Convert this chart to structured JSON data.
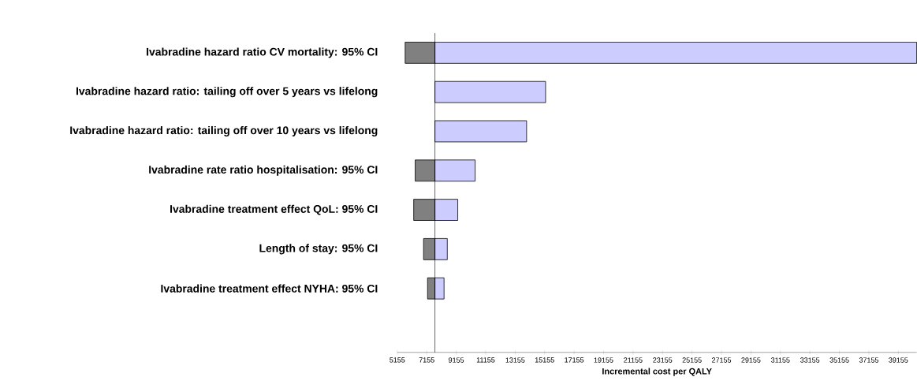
{
  "chart_data": {
    "type": "bar",
    "orientation": "horizontal",
    "xlabel": "Incremental cost per QALY",
    "categories": [
      "Ivabradine hazard ratio CV mortality: 95% CI",
      "Ivabradine hazard ratio: tailing off over 5 years vs lifelong",
      "Ivabradine hazard ratio: tailing off over 10 years vs lifelong",
      "Ivabradine rate ratio hospitalisation:  95% CI",
      "Ivabradine treatment effect QoL: 95% CI",
      "Length of stay: 95% CI",
      "Ivabradine treatment effect NYHA: 95% CI"
    ],
    "series": [
      {
        "color": "#808080",
        "base": [
          7711,
          null,
          null,
          7711,
          7711,
          7711,
          7711
        ],
        "values": [
          -2020,
          null,
          null,
          -1340,
          -1440,
          -770,
          -500
        ]
      },
      {
        "color": "#ccccff",
        "base": [
          7711,
          7711,
          7711,
          7711,
          7711,
          7711,
          7711
        ],
        "values": [
          32690,
          7510,
          6220,
          2730,
          1550,
          840,
          620
        ]
      }
    ],
    "xlim": [
      5155,
      40400
    ],
    "xticks": [
      5155,
      7155,
      9155,
      11155,
      13155,
      15155,
      17155,
      19155,
      21155,
      23155,
      25155,
      27155,
      29155,
      31155,
      33155,
      35155,
      37155,
      39155
    ],
    "ref_lines": [
      {
        "axis": "x",
        "value": 7711
      }
    ]
  }
}
